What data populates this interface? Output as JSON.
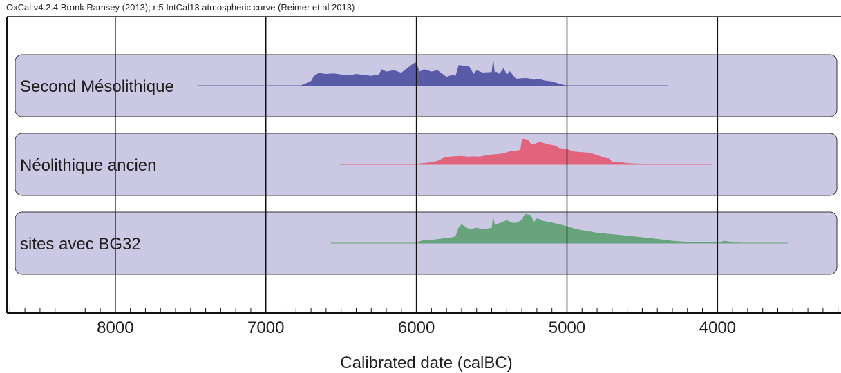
{
  "header": {
    "text": "OxCal v4.2.4 Bronk Ramsey (2013); r:5 IntCal13 atmospheric curve (Reimer et al 2013)"
  },
  "chart_data": {
    "type": "area",
    "title": "",
    "xlabel": "Calibrated date (calBC)",
    "ylabel": "",
    "x_reversed": true,
    "xlim": [
      8720,
      3180
    ],
    "xticks": [
      8000,
      7000,
      6000,
      5000,
      4000
    ],
    "minor_tick_step": 100,
    "grid": true,
    "colors": {
      "band_fill": "#cbc8e4",
      "band_stroke": "#333333",
      "grid": "#111111",
      "axis": "#111111"
    },
    "series": [
      {
        "name": "Second Mésolithique",
        "color": "#5a5ba8",
        "range": [
          7450,
          4330
        ],
        "x": [
          7450,
          6770,
          6750,
          6700,
          6680,
          6650,
          6600,
          6550,
          6500,
          6450,
          6400,
          6350,
          6300,
          6250,
          6230,
          6200,
          6150,
          6100,
          6050,
          6020,
          6000,
          5980,
          5950,
          5900,
          5860,
          5800,
          5760,
          5740,
          5720,
          5700,
          5650,
          5620,
          5600,
          5560,
          5500,
          5490,
          5480,
          5470,
          5450,
          5420,
          5400,
          5380,
          5360,
          5340,
          5320,
          5300,
          5260,
          5220,
          5180,
          5150,
          5100,
          5050,
          5000,
          4330
        ],
        "y": [
          0,
          0,
          0.06,
          0.2,
          0.42,
          0.54,
          0.5,
          0.52,
          0.48,
          0.44,
          0.5,
          0.46,
          0.42,
          0.48,
          0.7,
          0.6,
          0.66,
          0.55,
          0.8,
          0.95,
          1.0,
          0.6,
          0.7,
          0.6,
          0.66,
          0.38,
          0.46,
          0.42,
          0.88,
          0.86,
          0.82,
          0.5,
          0.66,
          0.56,
          0.58,
          1.18,
          0.55,
          0.6,
          0.5,
          0.76,
          0.46,
          0.62,
          0.46,
          0.3,
          0.3,
          0.32,
          0.32,
          0.26,
          0.28,
          0.22,
          0.18,
          0.08,
          0,
          0
        ]
      },
      {
        "name": "Néolithique ancien",
        "color": "#e2647c",
        "range": [
          6510,
          4040
        ],
        "x": [
          6510,
          6010,
          5980,
          5950,
          5900,
          5860,
          5820,
          5780,
          5740,
          5700,
          5660,
          5620,
          5580,
          5540,
          5500,
          5460,
          5420,
          5380,
          5340,
          5310,
          5300,
          5290,
          5260,
          5240,
          5220,
          5200,
          5180,
          5160,
          5120,
          5080,
          5050,
          5000,
          4950,
          4900,
          4850,
          4800,
          4760,
          4720,
          4700,
          4650,
          4600,
          4550,
          4500,
          4450,
          4040
        ],
        "y": [
          0,
          0,
          0.04,
          0.06,
          0.1,
          0.15,
          0.28,
          0.33,
          0.35,
          0.36,
          0.33,
          0.34,
          0.33,
          0.38,
          0.42,
          0.44,
          0.48,
          0.56,
          0.58,
          0.62,
          1.05,
          1.1,
          1.05,
          0.88,
          0.85,
          0.92,
          0.96,
          0.92,
          0.85,
          0.8,
          0.7,
          0.65,
          0.55,
          0.52,
          0.5,
          0.4,
          0.3,
          0.25,
          0.12,
          0.1,
          0.06,
          0.04,
          0.03,
          0,
          0
        ]
      },
      {
        "name": "sites avec BG32",
        "color": "#68a47b",
        "range": [
          6570,
          3530
        ],
        "x": [
          6570,
          6000,
          5980,
          5950,
          5900,
          5850,
          5800,
          5760,
          5740,
          5720,
          5700,
          5650,
          5600,
          5550,
          5500,
          5490,
          5480,
          5460,
          5400,
          5360,
          5330,
          5300,
          5280,
          5260,
          5240,
          5220,
          5200,
          5180,
          5160,
          5100,
          5050,
          5000,
          4950,
          4900,
          4850,
          4800,
          4700,
          4600,
          4500,
          4400,
          4300,
          4200,
          4100,
          4000,
          3950,
          3920,
          3900,
          3850,
          3800,
          3530
        ],
        "y": [
          0,
          0,
          0.08,
          0.12,
          0.14,
          0.18,
          0.22,
          0.25,
          0.3,
          0.68,
          0.8,
          0.6,
          0.65,
          0.6,
          0.65,
          1.15,
          0.78,
          0.82,
          0.98,
          0.86,
          0.88,
          1.0,
          1.25,
          1.22,
          1.2,
          0.9,
          1.05,
          1.02,
          0.95,
          0.88,
          0.8,
          0.72,
          0.62,
          0.55,
          0.5,
          0.44,
          0.38,
          0.32,
          0.25,
          0.18,
          0.1,
          0.05,
          0.03,
          0.03,
          0.1,
          0.06,
          0.02,
          0.02,
          0,
          0
        ]
      }
    ]
  }
}
